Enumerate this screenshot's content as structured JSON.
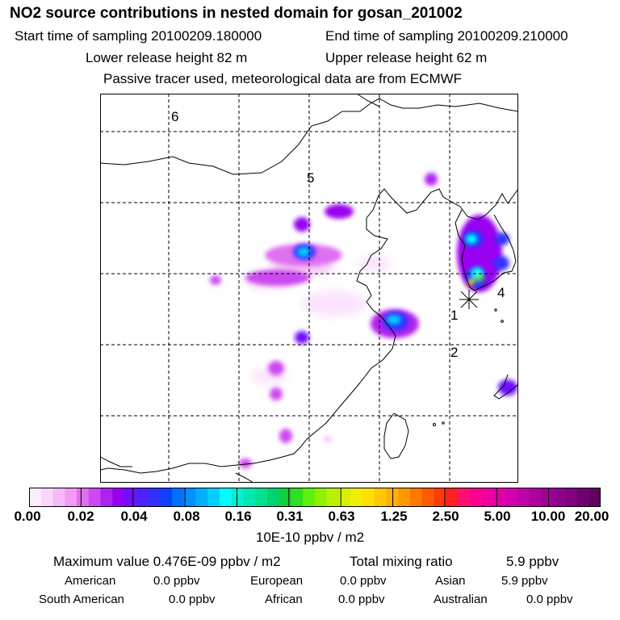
{
  "header": {
    "title": "NO2 source contributions in nested domain for gosan_201002",
    "start_sampling": "Start time of sampling 20100209.180000",
    "end_sampling": "End time of sampling 20100209.210000",
    "lower_release": "Lower release height   82 m",
    "upper_release": "Upper release height   62 m",
    "tracer_note": "Passive tracer used, meteorological data are from ECMWF"
  },
  "map": {
    "region_labels": [
      "6",
      "5",
      "4",
      "1",
      "2"
    ],
    "receptor_marker": "receptor-star"
  },
  "legend": {
    "ticks": [
      "0.00",
      "0.02",
      "0.04",
      "0.08",
      "0.16",
      "0.31",
      "0.63",
      "1.25",
      "2.50",
      "5.00",
      "10.00",
      "20.00"
    ],
    "units": "10E-10 ppbv / m2",
    "colors": [
      "#fdeefd",
      "#fad6fa",
      "#f6b9f6",
      "#f29cf3",
      "#e070f0",
      "#cc48f0",
      "#b020f0",
      "#9a00f0",
      "#7010ff",
      "#5020ff",
      "#3030ff",
      "#1040ff",
      "#0070ff",
      "#0090ff",
      "#00b0ff",
      "#00d0ff",
      "#00ffff",
      "#00f0d0",
      "#00e8b0",
      "#00e090",
      "#00d070",
      "#10d040",
      "#30e020",
      "#60f010",
      "#90f000",
      "#b8f000",
      "#d8f000",
      "#f0f000",
      "#ffe000",
      "#ffc800",
      "#ffb000",
      "#ff9800",
      "#ff7800",
      "#ff5a00",
      "#ff3c00",
      "#ff2020",
      "#ff1070",
      "#ff0090",
      "#f000a0",
      "#e000a8",
      "#d000b0",
      "#c000a8",
      "#b000a0",
      "#a00098",
      "#900090",
      "#800080",
      "#700070",
      "#600060"
    ]
  },
  "stats": {
    "max_value_label": "Maximum value  0.476E-09 ppbv / m2",
    "total_mixing_label": "Total mixing ratio",
    "total_mixing_value": "5.9 ppbv",
    "american_label": "American",
    "american_value": "0.0 ppbv",
    "european_label": "European",
    "european_value": "0.0 ppbv",
    "asian_label": "Asian",
    "asian_value": "5.9 ppbv",
    "south_american_label": "South American",
    "south_american_value": "0.0 ppbv",
    "african_label": "African",
    "african_value": "0.0 ppbv",
    "australian_label": "Australian",
    "australian_value": "0.0 ppbv"
  }
}
